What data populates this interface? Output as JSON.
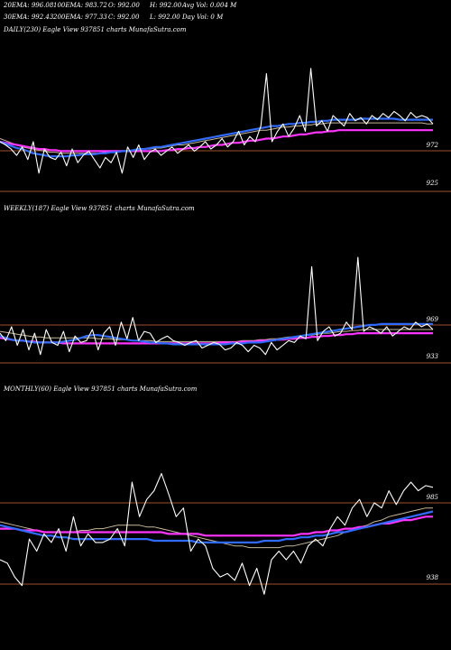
{
  "header": {
    "ema20": "20EMA: 996.08",
    "ema100": "100EMA: 983.72",
    "open": "O: 992.00",
    "high": "H: 992.00",
    "avgvol": "Avg Vol: 0.004 M",
    "ema30": "30EMA: 992.43",
    "ema200": "200EMA: 977.33",
    "close": "C: 992.00",
    "low": "L: 992.00",
    "dayvol": "Day Vol: 0  M"
  },
  "colors": {
    "price": "#ffffff",
    "ema_short": "#2f6bff",
    "ema_mid": "#c8b89a",
    "ema_long": "#ff33ff",
    "hline": "#a0522d"
  },
  "chart_data": [
    {
      "type": "line",
      "title": "DAILY(230) Eagle  View  937851 charts MunafaSutra.com",
      "levels": [
        "972",
        "925"
      ],
      "series": [
        {
          "values": [
            975,
            972,
            968,
            962,
            970,
            958,
            975,
            945,
            968,
            960,
            958,
            965,
            952,
            968,
            955,
            962,
            966,
            958,
            950,
            960,
            955,
            965,
            945,
            970,
            960,
            972,
            958,
            965,
            968,
            962,
            966,
            970,
            964,
            968,
            972,
            966,
            970,
            975,
            968,
            972,
            978,
            970,
            975,
            985,
            972,
            980,
            975,
            990,
            1040,
            975,
            985,
            992,
            980,
            988,
            1000,
            985,
            1045,
            990,
            995,
            985,
            1000,
            995,
            990,
            1002,
            995,
            998,
            992,
            1000,
            996,
            1002,
            998,
            1004,
            1000,
            995,
            1003,
            998,
            1000,
            998,
            992
          ]
        },
        {
          "values": [
            975,
            973,
            971,
            969,
            968,
            966,
            964,
            963,
            962,
            961,
            961,
            961,
            961,
            962,
            962,
            963,
            963,
            963,
            964,
            964,
            965,
            965,
            966,
            966,
            967,
            968,
            968,
            969,
            970,
            970,
            971,
            972,
            973,
            974,
            975,
            976,
            977,
            978,
            979,
            980,
            981,
            982,
            983,
            984,
            985,
            986,
            987,
            988,
            989,
            990,
            990,
            991,
            992,
            992,
            993,
            993,
            994,
            994,
            995,
            995,
            996,
            996,
            996,
            996,
            996,
            997,
            997,
            997,
            997,
            997,
            997,
            997,
            996,
            996,
            996,
            996,
            996,
            996,
            996
          ]
        },
        {
          "values": [
            978,
            976,
            974,
            972,
            970,
            969,
            968,
            967,
            966,
            965,
            965,
            964,
            964,
            964,
            964,
            964,
            964,
            964,
            964,
            965,
            965,
            965,
            966,
            966,
            967,
            967,
            968,
            968,
            969,
            969,
            970,
            971,
            972,
            972,
            973,
            974,
            975,
            976,
            977,
            978,
            979,
            980,
            981,
            982,
            983,
            984,
            985,
            986,
            986,
            987,
            988,
            989,
            989,
            990,
            990,
            991,
            991,
            992,
            992,
            993,
            993,
            993,
            993,
            993,
            993,
            993,
            993,
            993,
            993,
            993,
            993,
            993,
            993,
            993,
            993,
            993,
            993,
            992,
            992
          ]
        },
        {
          "values": [
            975,
            974,
            973,
            972,
            971,
            970,
            969,
            968,
            968,
            967,
            967,
            966,
            966,
            966,
            966,
            966,
            966,
            966,
            966,
            966,
            966,
            966,
            966,
            966,
            966,
            966,
            966,
            966,
            966,
            966,
            967,
            967,
            968,
            968,
            969,
            969,
            970,
            970,
            971,
            972,
            972,
            973,
            974,
            974,
            975,
            976,
            976,
            977,
            978,
            978,
            979,
            980,
            980,
            981,
            982,
            982,
            983,
            984,
            984,
            985,
            985,
            986,
            986,
            986,
            986,
            986,
            986,
            986,
            986,
            986,
            986,
            986,
            986,
            986,
            986,
            986,
            986,
            986,
            986
          ]
        }
      ]
    },
    {
      "type": "line",
      "title": "WEEKLY(187) Eagle  View  937851 charts MunafaSutra.com",
      "levels": [
        "969",
        "933"
      ],
      "series": [
        {
          "values": [
            968,
            960,
            975,
            955,
            972,
            950,
            968,
            945,
            972,
            958,
            955,
            970,
            948,
            965,
            958,
            960,
            972,
            950,
            968,
            975,
            955,
            980,
            962,
            985,
            960,
            970,
            968,
            958,
            962,
            965,
            960,
            958,
            955,
            958,
            960,
            952,
            955,
            958,
            956,
            950,
            952,
            958,
            955,
            948,
            955,
            952,
            945,
            958,
            950,
            955,
            960,
            958,
            965,
            962,
            1040,
            960,
            970,
            975,
            965,
            968,
            980,
            972,
            1050,
            970,
            975,
            972,
            968,
            975,
            965,
            970,
            975,
            972,
            980,
            975,
            978,
            972
          ]
        },
        {
          "values": [
            965,
            963,
            961,
            960,
            960,
            959,
            958,
            958,
            958,
            958,
            958,
            959,
            960,
            961,
            963,
            965,
            966,
            966,
            965,
            964,
            963,
            962,
            961,
            960,
            960,
            959,
            958,
            958,
            957,
            957,
            956,
            956,
            956,
            956,
            956,
            956,
            956,
            956,
            956,
            956,
            957,
            957,
            957,
            958,
            958,
            958,
            959,
            960,
            961,
            962,
            963,
            964,
            965,
            966,
            967,
            968,
            969,
            970,
            971,
            972,
            973,
            974,
            975,
            976,
            977,
            977,
            978,
            978,
            978,
            978,
            978,
            978,
            978,
            978,
            978,
            978
          ]
        },
        {
          "values": [
            970,
            969,
            968,
            967,
            966,
            965,
            964,
            964,
            963,
            963,
            963,
            963,
            963,
            963,
            963,
            963,
            963,
            962,
            962,
            962,
            961,
            961,
            961,
            960,
            960,
            960,
            960,
            959,
            959,
            959,
            959,
            959,
            959,
            959,
            959,
            959,
            959,
            959,
            959,
            959,
            959,
            959,
            960,
            960,
            960,
            961,
            961,
            962,
            962,
            963,
            964,
            964,
            965,
            966,
            966,
            967,
            968,
            968,
            969,
            970,
            970,
            971,
            971,
            972,
            972,
            972,
            972,
            972,
            972,
            972,
            972,
            972,
            972,
            972,
            972,
            972
          ]
        },
        {
          "values": [
            963,
            962,
            961,
            960,
            960,
            959,
            959,
            958,
            958,
            958,
            958,
            957,
            957,
            957,
            957,
            957,
            957,
            957,
            957,
            957,
            957,
            957,
            957,
            957,
            957,
            957,
            957,
            957,
            957,
            957,
            957,
            957,
            957,
            957,
            957,
            957,
            957,
            957,
            958,
            958,
            958,
            958,
            959,
            959,
            959,
            960,
            960,
            960,
            961,
            961,
            962,
            962,
            963,
            963,
            964,
            964,
            965,
            965,
            966,
            966,
            967,
            967,
            968,
            968,
            968,
            968,
            968,
            968,
            968,
            968,
            968,
            968,
            968,
            968,
            968,
            968
          ]
        }
      ]
    },
    {
      "type": "line",
      "title": "MONTHLY(60) Eagle  View  937851 charts MunafaSutra.com",
      "levels": [
        "985",
        "938"
      ],
      "series": [
        {
          "values": [
            950,
            948,
            940,
            935,
            962,
            955,
            965,
            960,
            968,
            955,
            975,
            958,
            965,
            960,
            960,
            962,
            968,
            958,
            995,
            975,
            985,
            990,
            1000,
            988,
            975,
            980,
            955,
            962,
            958,
            945,
            940,
            942,
            938,
            948,
            935,
            945,
            930,
            950,
            955,
            950,
            955,
            948,
            958,
            962,
            958,
            968,
            975,
            970,
            980,
            985,
            975,
            983,
            980,
            990,
            982,
            990,
            995,
            990,
            993,
            992
          ]
        },
        {
          "values": [
            970,
            969,
            968,
            967,
            966,
            965,
            964,
            964,
            963,
            963,
            962,
            962,
            962,
            962,
            962,
            962,
            962,
            962,
            962,
            962,
            962,
            961,
            961,
            961,
            961,
            961,
            961,
            960,
            960,
            960,
            960,
            960,
            960,
            960,
            960,
            960,
            961,
            961,
            961,
            962,
            962,
            963,
            963,
            964,
            964,
            965,
            966,
            966,
            967,
            968,
            969,
            970,
            971,
            972,
            973,
            974,
            975,
            976,
            977,
            978
          ]
        },
        {
          "values": [
            972,
            971,
            970,
            969,
            968,
            967,
            966,
            966,
            966,
            966,
            966,
            967,
            967,
            968,
            968,
            969,
            970,
            970,
            970,
            970,
            969,
            969,
            968,
            967,
            966,
            965,
            964,
            963,
            962,
            961,
            960,
            959,
            958,
            958,
            957,
            957,
            957,
            957,
            957,
            958,
            958,
            959,
            960,
            961,
            962,
            963,
            964,
            966,
            967,
            969,
            970,
            972,
            973,
            975,
            976,
            977,
            978,
            979,
            980,
            980
          ]
        },
        {
          "values": [
            968,
            968,
            968,
            967,
            967,
            967,
            966,
            966,
            966,
            966,
            966,
            966,
            966,
            966,
            966,
            966,
            966,
            966,
            966,
            966,
            966,
            966,
            966,
            965,
            965,
            965,
            965,
            965,
            964,
            964,
            964,
            964,
            964,
            964,
            964,
            964,
            964,
            964,
            964,
            964,
            964,
            965,
            965,
            966,
            966,
            967,
            967,
            968,
            968,
            969,
            969,
            970,
            971,
            971,
            972,
            973,
            973,
            974,
            975,
            975
          ]
        }
      ]
    }
  ]
}
